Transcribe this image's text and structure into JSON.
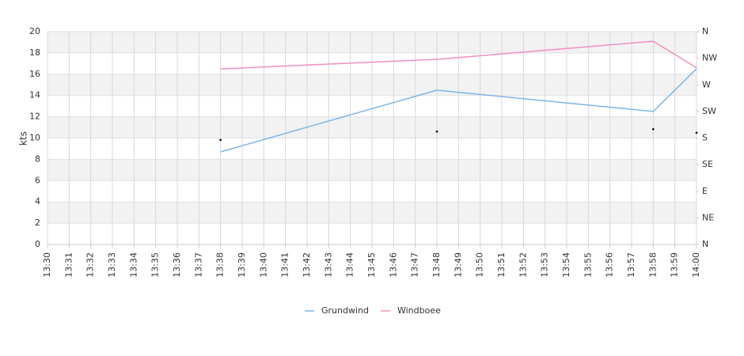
{
  "chart_data": {
    "type": "line",
    "y_label": "kts",
    "categories": [
      "13:30",
      "13:31",
      "13:32",
      "13:33",
      "13:34",
      "13:35",
      "13:36",
      "13:37",
      "13:38",
      "13:39",
      "13:40",
      "13:41",
      "13:42",
      "13:43",
      "13:44",
      "13:45",
      "13:46",
      "13:47",
      "13:48",
      "13:49",
      "13:50",
      "13:51",
      "13:52",
      "13:53",
      "13:54",
      "13:55",
      "13:56",
      "13:57",
      "13:58",
      "13:59",
      "14:00"
    ],
    "series": [
      {
        "name": "Grundwind",
        "color": "#7cb5ec",
        "x": [
          "13:38",
          "13:48",
          "13:58",
          "14:00"
        ],
        "values": [
          8.7,
          14.5,
          12.5,
          16.5
        ]
      },
      {
        "name": "Windboee",
        "color": "#f08fc0",
        "x": [
          "13:38",
          "13:48",
          "13:58",
          "14:00"
        ],
        "values": [
          16.5,
          17.4,
          19.1,
          16.6
        ]
      },
      {
        "color": "#000000",
        "axis": "y2",
        "x": [
          "13:38",
          "13:48",
          "13:58",
          "14:00"
        ],
        "values": [
          177,
          191,
          195,
          189
        ]
      }
    ],
    "ylim": [
      0,
      20
    ],
    "yticks": [
      0,
      2,
      4,
      6,
      8,
      10,
      12,
      14,
      16,
      18,
      20
    ],
    "y2lim": [
      0,
      360
    ],
    "y2ticks": [
      {
        "value": 0,
        "label": "N"
      },
      {
        "value": 45,
        "label": "NE"
      },
      {
        "value": 90,
        "label": "E"
      },
      {
        "value": 135,
        "label": "SE"
      },
      {
        "value": 180,
        "label": "S"
      },
      {
        "value": 225,
        "label": "SW"
      },
      {
        "value": 270,
        "label": "W"
      },
      {
        "value": 315,
        "label": "NW"
      },
      {
        "value": 360,
        "label": "N"
      }
    ],
    "grid": true
  }
}
